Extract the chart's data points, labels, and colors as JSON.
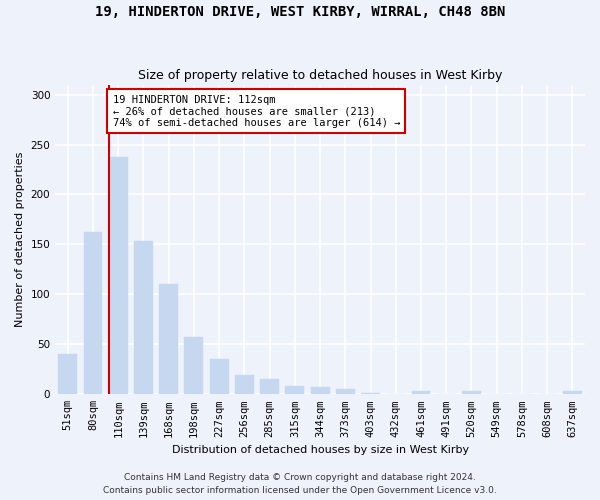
{
  "title1": "19, HINDERTON DRIVE, WEST KIRBY, WIRRAL, CH48 8BN",
  "title2": "Size of property relative to detached houses in West Kirby",
  "xlabel": "Distribution of detached houses by size in West Kirby",
  "ylabel": "Number of detached properties",
  "categories": [
    "51sqm",
    "80sqm",
    "110sqm",
    "139sqm",
    "168sqm",
    "198sqm",
    "227sqm",
    "256sqm",
    "285sqm",
    "315sqm",
    "344sqm",
    "373sqm",
    "403sqm",
    "432sqm",
    "461sqm",
    "491sqm",
    "520sqm",
    "549sqm",
    "578sqm",
    "608sqm",
    "637sqm"
  ],
  "values": [
    40,
    162,
    237,
    153,
    110,
    57,
    35,
    19,
    15,
    8,
    7,
    5,
    1,
    0,
    3,
    0,
    3,
    0,
    0,
    0,
    3
  ],
  "bar_color": "#c5d8f0",
  "bar_edge_color": "#c5d8f0",
  "property_line_index": 2,
  "annotation_text": "19 HINDERTON DRIVE: 112sqm\n← 26% of detached houses are smaller (213)\n74% of semi-detached houses are larger (614) →",
  "annotation_box_facecolor": "#ffffff",
  "annotation_box_edgecolor": "#cc0000",
  "vline_color": "#cc0000",
  "background_color": "#eef2fa",
  "plot_bg_color": "#eef2fa",
  "grid_color": "#ffffff",
  "ylim": [
    0,
    310
  ],
  "yticks": [
    0,
    50,
    100,
    150,
    200,
    250,
    300
  ],
  "footer1": "Contains HM Land Registry data © Crown copyright and database right 2024.",
  "footer2": "Contains public sector information licensed under the Open Government Licence v3.0.",
  "title_fontsize": 10,
  "subtitle_fontsize": 9,
  "axis_label_fontsize": 8,
  "tick_fontsize": 7.5,
  "annotation_fontsize": 7.5,
  "footer_fontsize": 6.5,
  "bar_width": 0.75
}
